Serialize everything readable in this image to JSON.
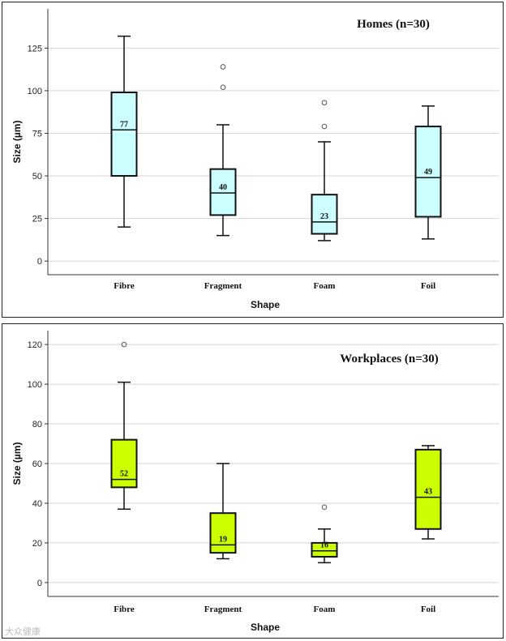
{
  "chart_data": [
    {
      "type": "box",
      "title": "Homes (n=30)",
      "xlabel": "Shape",
      "ylabel": "Size (µm)",
      "categories": [
        "Fibre",
        "Fragment",
        "Foam",
        "Foil"
      ],
      "yticks": [
        0,
        25,
        50,
        75,
        100,
        125
      ],
      "ylim": [
        -8,
        148
      ],
      "fill_color": "#ccffff",
      "grid": true,
      "boxes": [
        {
          "category": "Fibre",
          "min": 20,
          "q1": 50,
          "median": 77,
          "q3": 99,
          "max": 132,
          "outliers": [],
          "label": "77"
        },
        {
          "category": "Fragment",
          "min": 15,
          "q1": 27,
          "median": 40,
          "q3": 54,
          "max": 80,
          "outliers": [
            102,
            114
          ],
          "label": "40"
        },
        {
          "category": "Foam",
          "min": 12,
          "q1": 16,
          "median": 23,
          "q3": 39,
          "max": 70,
          "outliers": [
            79,
            93
          ],
          "label": "23"
        },
        {
          "category": "Foil",
          "min": 13,
          "q1": 26,
          "median": 49,
          "q3": 79,
          "max": 91,
          "outliers": [],
          "label": "49"
        }
      ]
    },
    {
      "type": "box",
      "title": "Workplaces (n=30)",
      "xlabel": "Shape",
      "ylabel": "Size (µm)",
      "categories": [
        "Fibre",
        "Fragment",
        "Foam",
        "Foil"
      ],
      "yticks": [
        0,
        20,
        40,
        60,
        80,
        100,
        120
      ],
      "ylim": [
        -7,
        127
      ],
      "fill_color": "#ccff00",
      "grid": true,
      "boxes": [
        {
          "category": "Fibre",
          "min": 37,
          "q1": 48,
          "median": 52,
          "q3": 72,
          "max": 101,
          "outliers": [
            120
          ],
          "label": "52"
        },
        {
          "category": "Fragment",
          "min": 12,
          "q1": 15,
          "median": 19,
          "q3": 35,
          "max": 60,
          "outliers": [],
          "label": "19"
        },
        {
          "category": "Foam",
          "min": 10,
          "q1": 13,
          "median": 16,
          "q3": 20,
          "max": 27,
          "outliers": [
            38
          ],
          "label": "16"
        },
        {
          "category": "Foil",
          "min": 22,
          "q1": 27,
          "median": 43,
          "q3": 67,
          "max": 69,
          "outliers": [],
          "label": "43"
        }
      ]
    }
  ],
  "watermark": "大众健康"
}
